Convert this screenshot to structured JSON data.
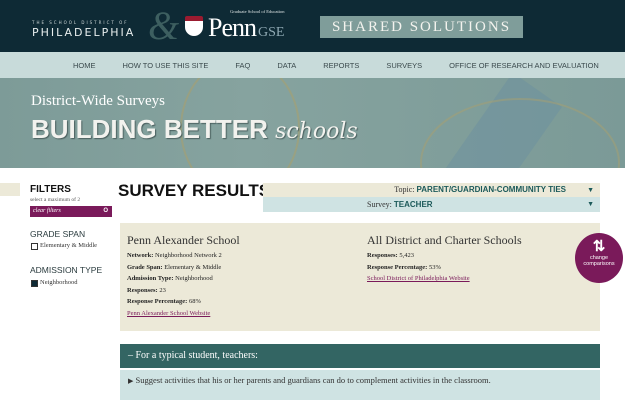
{
  "header": {
    "district_line1": "THE SCHOOL DISTRICT OF",
    "district_line2": "PHILADELPHIA",
    "ampersand": "&",
    "penn_subtitle": "Graduate School of Education",
    "penn": "Penn",
    "gse": "GSE",
    "shared_solutions": "SHARED SOLUTIONS"
  },
  "nav": [
    "HOME",
    "HOW TO USE THIS SITE",
    "FAQ",
    "DATA",
    "REPORTS",
    "SURVEYS",
    "OFFICE OF RESEARCH AND EVALUATION"
  ],
  "banner": {
    "subtitle": "District-Wide Surveys",
    "title": "BUILDING BETTER",
    "title_script": "schools"
  },
  "filters": {
    "heading": "FILTERS",
    "sub": "select a maximum of 2",
    "clear": "clear filters",
    "clear_icon": "O",
    "grade_span": {
      "heading": "GRADE SPAN",
      "option": "Elementary & Middle",
      "checked": false
    },
    "admission": {
      "heading": "ADMISSION TYPE",
      "option": "Neighborhood",
      "checked": true
    }
  },
  "results": {
    "title": "SURVEY RESULTS",
    "topic_label": "Topic:",
    "topic_value": "PARENT/GUARDIAN-COMMUNITY TIES",
    "survey_label": "Survey:",
    "survey_value": "TEACHER"
  },
  "school": {
    "name": "Penn Alexander School",
    "network_label": "Network:",
    "network": "Neighborhood Network 2",
    "grade_label": "Grade Span:",
    "grade": "Elementary & Middle",
    "admission_label": "Admission Type:",
    "admission": "Neighborhood",
    "responses_label": "Responses:",
    "responses": "23",
    "pct_label": "Response Percentage:",
    "pct": "68%",
    "link": "Penn Alexander School Website"
  },
  "district": {
    "name": "All District and Charter Schools",
    "responses_label": "Responses:",
    "responses": "5,423",
    "pct_label": "Response Percentage:",
    "pct": "53%",
    "link": "School District of Philadelphia Website"
  },
  "change": {
    "line1": "change",
    "line2": "comparisons"
  },
  "question": {
    "header": "– For a typical student, teachers:",
    "item": "Suggest activities that his or her parents and guardians can do to complement activities in the classroom."
  },
  "colors": {
    "header": "#0e2a35",
    "accent": "#7a1a5a",
    "teal": "#336563",
    "beige": "#ece9d8",
    "light_blue": "#cfe3e3"
  }
}
